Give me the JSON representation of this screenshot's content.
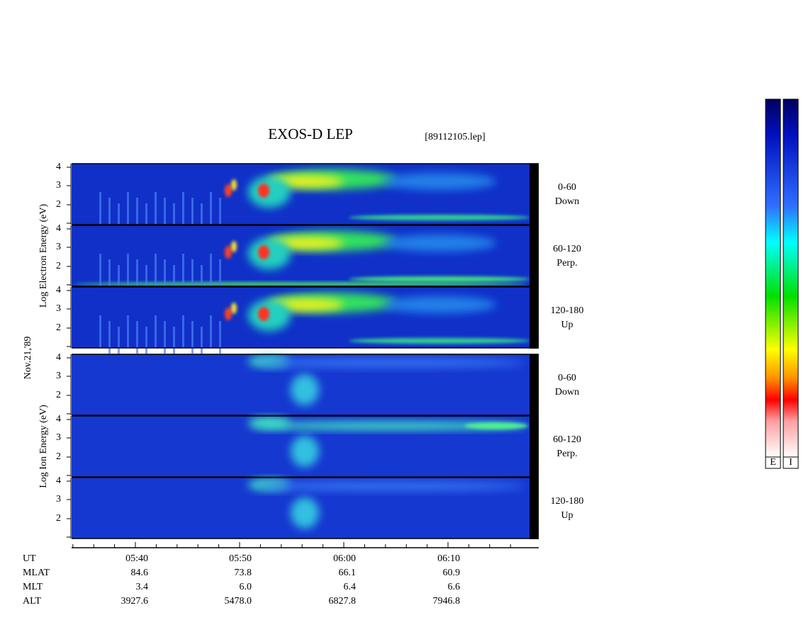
{
  "title": "EXOS-D LEP",
  "file": "[89112105.lep]",
  "electron_axis_label": "Log Electron Energy (eV)",
  "date": "Nov.21,'89",
  "ion_axis_label": "Log Ion Energy (eV)",
  "panels": [
    {
      "ticks": [
        "4",
        "3",
        "2"
      ],
      "angle": "0-60",
      "direction": "Down"
    },
    {
      "ticks": [
        "4",
        "3",
        "2"
      ],
      "angle": "60-120",
      "direction": "Perp."
    },
    {
      "ticks": [
        "4",
        "3",
        "2"
      ],
      "angle": "120-180",
      "direction": "Up"
    },
    {
      "ticks": [
        "4",
        "3",
        "2"
      ],
      "angle": "0-60",
      "direction": "Down"
    },
    {
      "ticks": [
        "4",
        "3",
        "2"
      ],
      "angle": "60-120",
      "direction": "Perp."
    },
    {
      "ticks": [
        "4",
        "3",
        "2"
      ],
      "angle": "120-180",
      "direction": "Up"
    }
  ],
  "ephemeris": [
    {
      "name": "UT",
      "values": [
        "05:40",
        "05:50",
        "06:00",
        "06:10"
      ]
    },
    {
      "name": "MLAT",
      "values": [
        "84.6",
        "73.8",
        "66.1",
        "60.9"
      ]
    },
    {
      "name": "MLT",
      "values": [
        "3.4",
        "6.0",
        "6.4",
        "6.6"
      ]
    },
    {
      "name": "ALT",
      "values": [
        "3927.6",
        "5478.0",
        "6827.8",
        "7946.8"
      ]
    }
  ],
  "colorbar": {
    "labels": [
      "E",
      "I"
    ]
  }
}
